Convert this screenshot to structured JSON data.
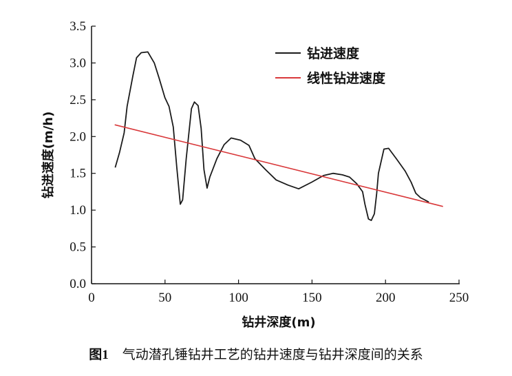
{
  "chart_data": {
    "type": "line",
    "xlabel": "钻井深度(m)",
    "ylabel": "钻进速度(m/h)",
    "xlim": [
      0,
      250
    ],
    "ylim": [
      0,
      3.5
    ],
    "xticks": [
      0,
      50,
      100,
      150,
      200,
      250
    ],
    "yticks": [
      "0.0",
      "0.5",
      "1.0",
      "1.5",
      "2.0",
      "2.5",
      "3.0",
      "3.5"
    ],
    "grid": false,
    "legend_position": "top-right",
    "series": [
      {
        "name": "钻进速度",
        "color": "#1a1a1a",
        "x": [
          16.1,
          19,
          22.2,
          24.2,
          28.2,
          30.6,
          33.8,
          38.3,
          42.7,
          45.9,
          49.9,
          52.7,
          55.6,
          58,
          60.4,
          62,
          64.4,
          68,
          70,
          72.5,
          74.6,
          76.5,
          78.6,
          80.5,
          85.3,
          90.2,
          95,
          101.4,
          107.1,
          111.1,
          118.4,
          125.6,
          133.7,
          140.9,
          149.8,
          157.8,
          164.3,
          170.7,
          175.5,
          180.4,
          184.4,
          186,
          188.4,
          190.3,
          192.4,
          194,
          195.2,
          198.9,
          202.1,
          207.7,
          213.4,
          217.4,
          220.6,
          223.8,
          229.5
        ],
        "y": [
          1.58,
          1.78,
          2.05,
          2.41,
          2.83,
          3.07,
          3.14,
          3.15,
          3.0,
          2.8,
          2.53,
          2.41,
          2.13,
          1.58,
          1.08,
          1.14,
          1.7,
          2.38,
          2.47,
          2.42,
          2.11,
          1.55,
          1.3,
          1.45,
          1.7,
          1.89,
          1.98,
          1.95,
          1.88,
          1.7,
          1.55,
          1.41,
          1.34,
          1.29,
          1.38,
          1.47,
          1.5,
          1.48,
          1.45,
          1.36,
          1.25,
          1.08,
          0.88,
          0.86,
          0.95,
          1.23,
          1.5,
          1.83,
          1.84,
          1.69,
          1.53,
          1.38,
          1.23,
          1.17,
          1.11
        ]
      },
      {
        "name": "线性钻进速度",
        "color": "#d9383a",
        "x": [
          15.8,
          239.1
        ],
        "y": [
          2.16,
          1.05
        ]
      }
    ]
  },
  "caption": {
    "figure_number": "图1",
    "text": "气动潜孔锤钻井工艺的钻井速度与钻井深度间的关系"
  }
}
